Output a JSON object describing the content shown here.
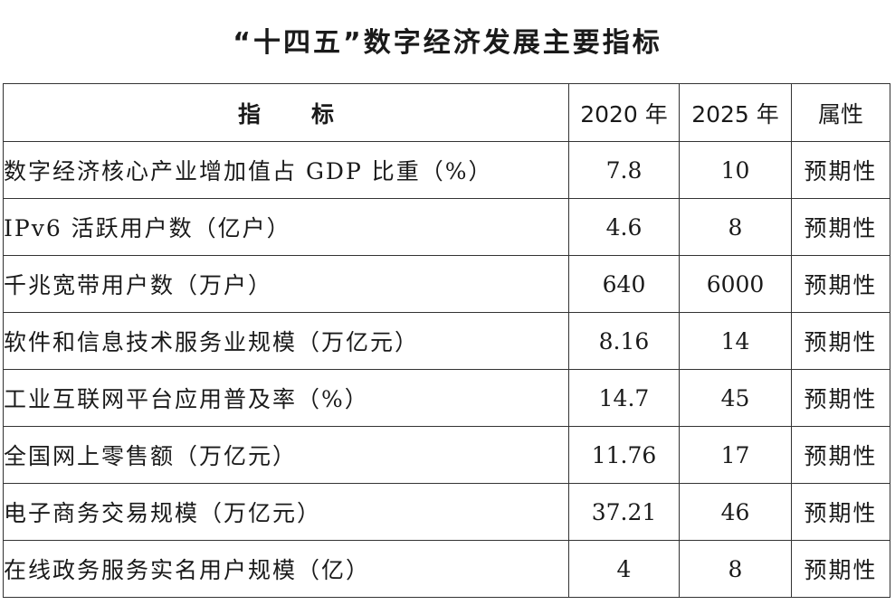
{
  "title": "“十四五”数字经济发展主要指标",
  "header": {
    "indicator_char1": "指",
    "indicator_char2": "标",
    "year_2020": "2020 年",
    "year_2025": "2025 年",
    "attribute": "属性"
  },
  "rows": [
    {
      "name": "数字经济核心产业增加值占 GDP 比重（%）",
      "v2020": "7.8",
      "v2025": "10",
      "attr": "预期性"
    },
    {
      "name": "IPv6 活跃用户数（亿户）",
      "v2020": "4.6",
      "v2025": "8",
      "attr": "预期性"
    },
    {
      "name": "千兆宽带用户数（万户）",
      "v2020": "640",
      "v2025": "6000",
      "attr": "预期性"
    },
    {
      "name": "软件和信息技术服务业规模（万亿元）",
      "v2020": "8.16",
      "v2025": "14",
      "attr": "预期性"
    },
    {
      "name": "工业互联网平台应用普及率（%）",
      "v2020": "14.7",
      "v2025": "45",
      "attr": "预期性"
    },
    {
      "name": "全国网上零售额（万亿元）",
      "v2020": "11.76",
      "v2025": "17",
      "attr": "预期性"
    },
    {
      "name": "电子商务交易规模（万亿元）",
      "v2020": "37.21",
      "v2025": "46",
      "attr": "预期性"
    },
    {
      "name": "在线政务服务实名用户规模（亿）",
      "v2020": "4",
      "v2025": "8",
      "attr": "预期性"
    }
  ]
}
